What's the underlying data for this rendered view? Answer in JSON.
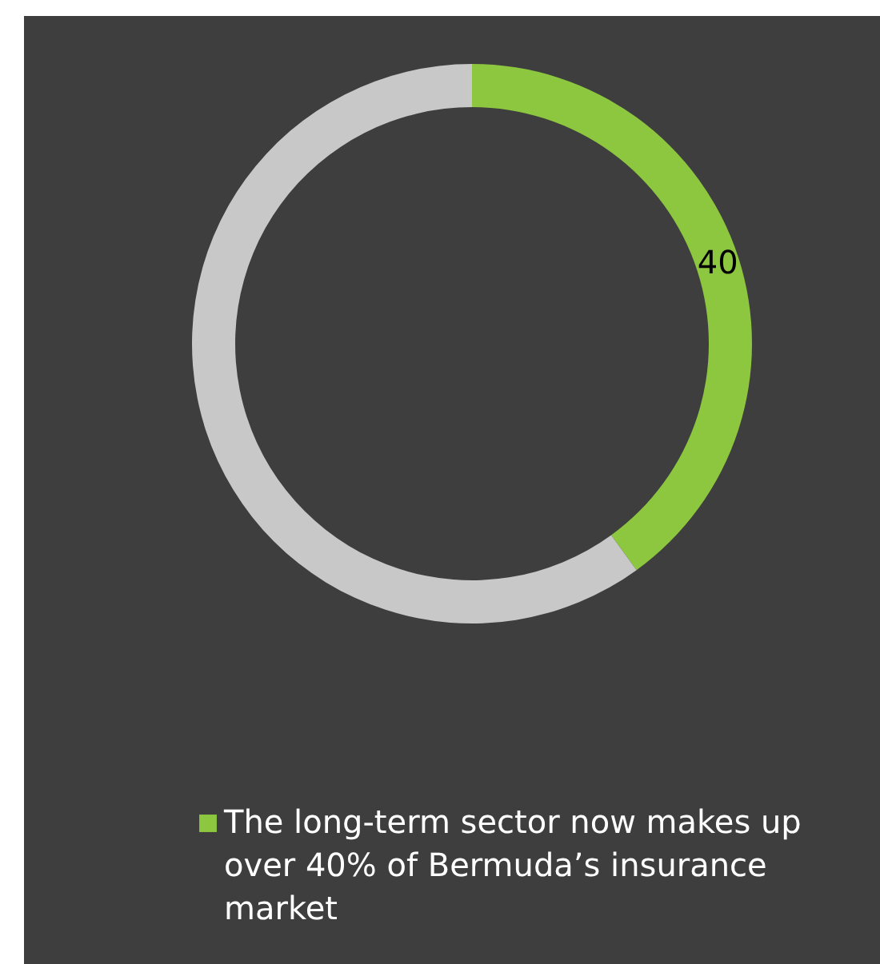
{
  "chart_data": {
    "type": "donut",
    "categories": [
      "The long-term sector now makes up over 40% of Bermuda’s insurance market",
      null
    ],
    "values": [
      40,
      60
    ],
    "colors": [
      "#8dc63f",
      "#c8c8c8"
    ],
    "value_labels": [
      "40",
      null
    ],
    "legend": "bottom"
  }
}
